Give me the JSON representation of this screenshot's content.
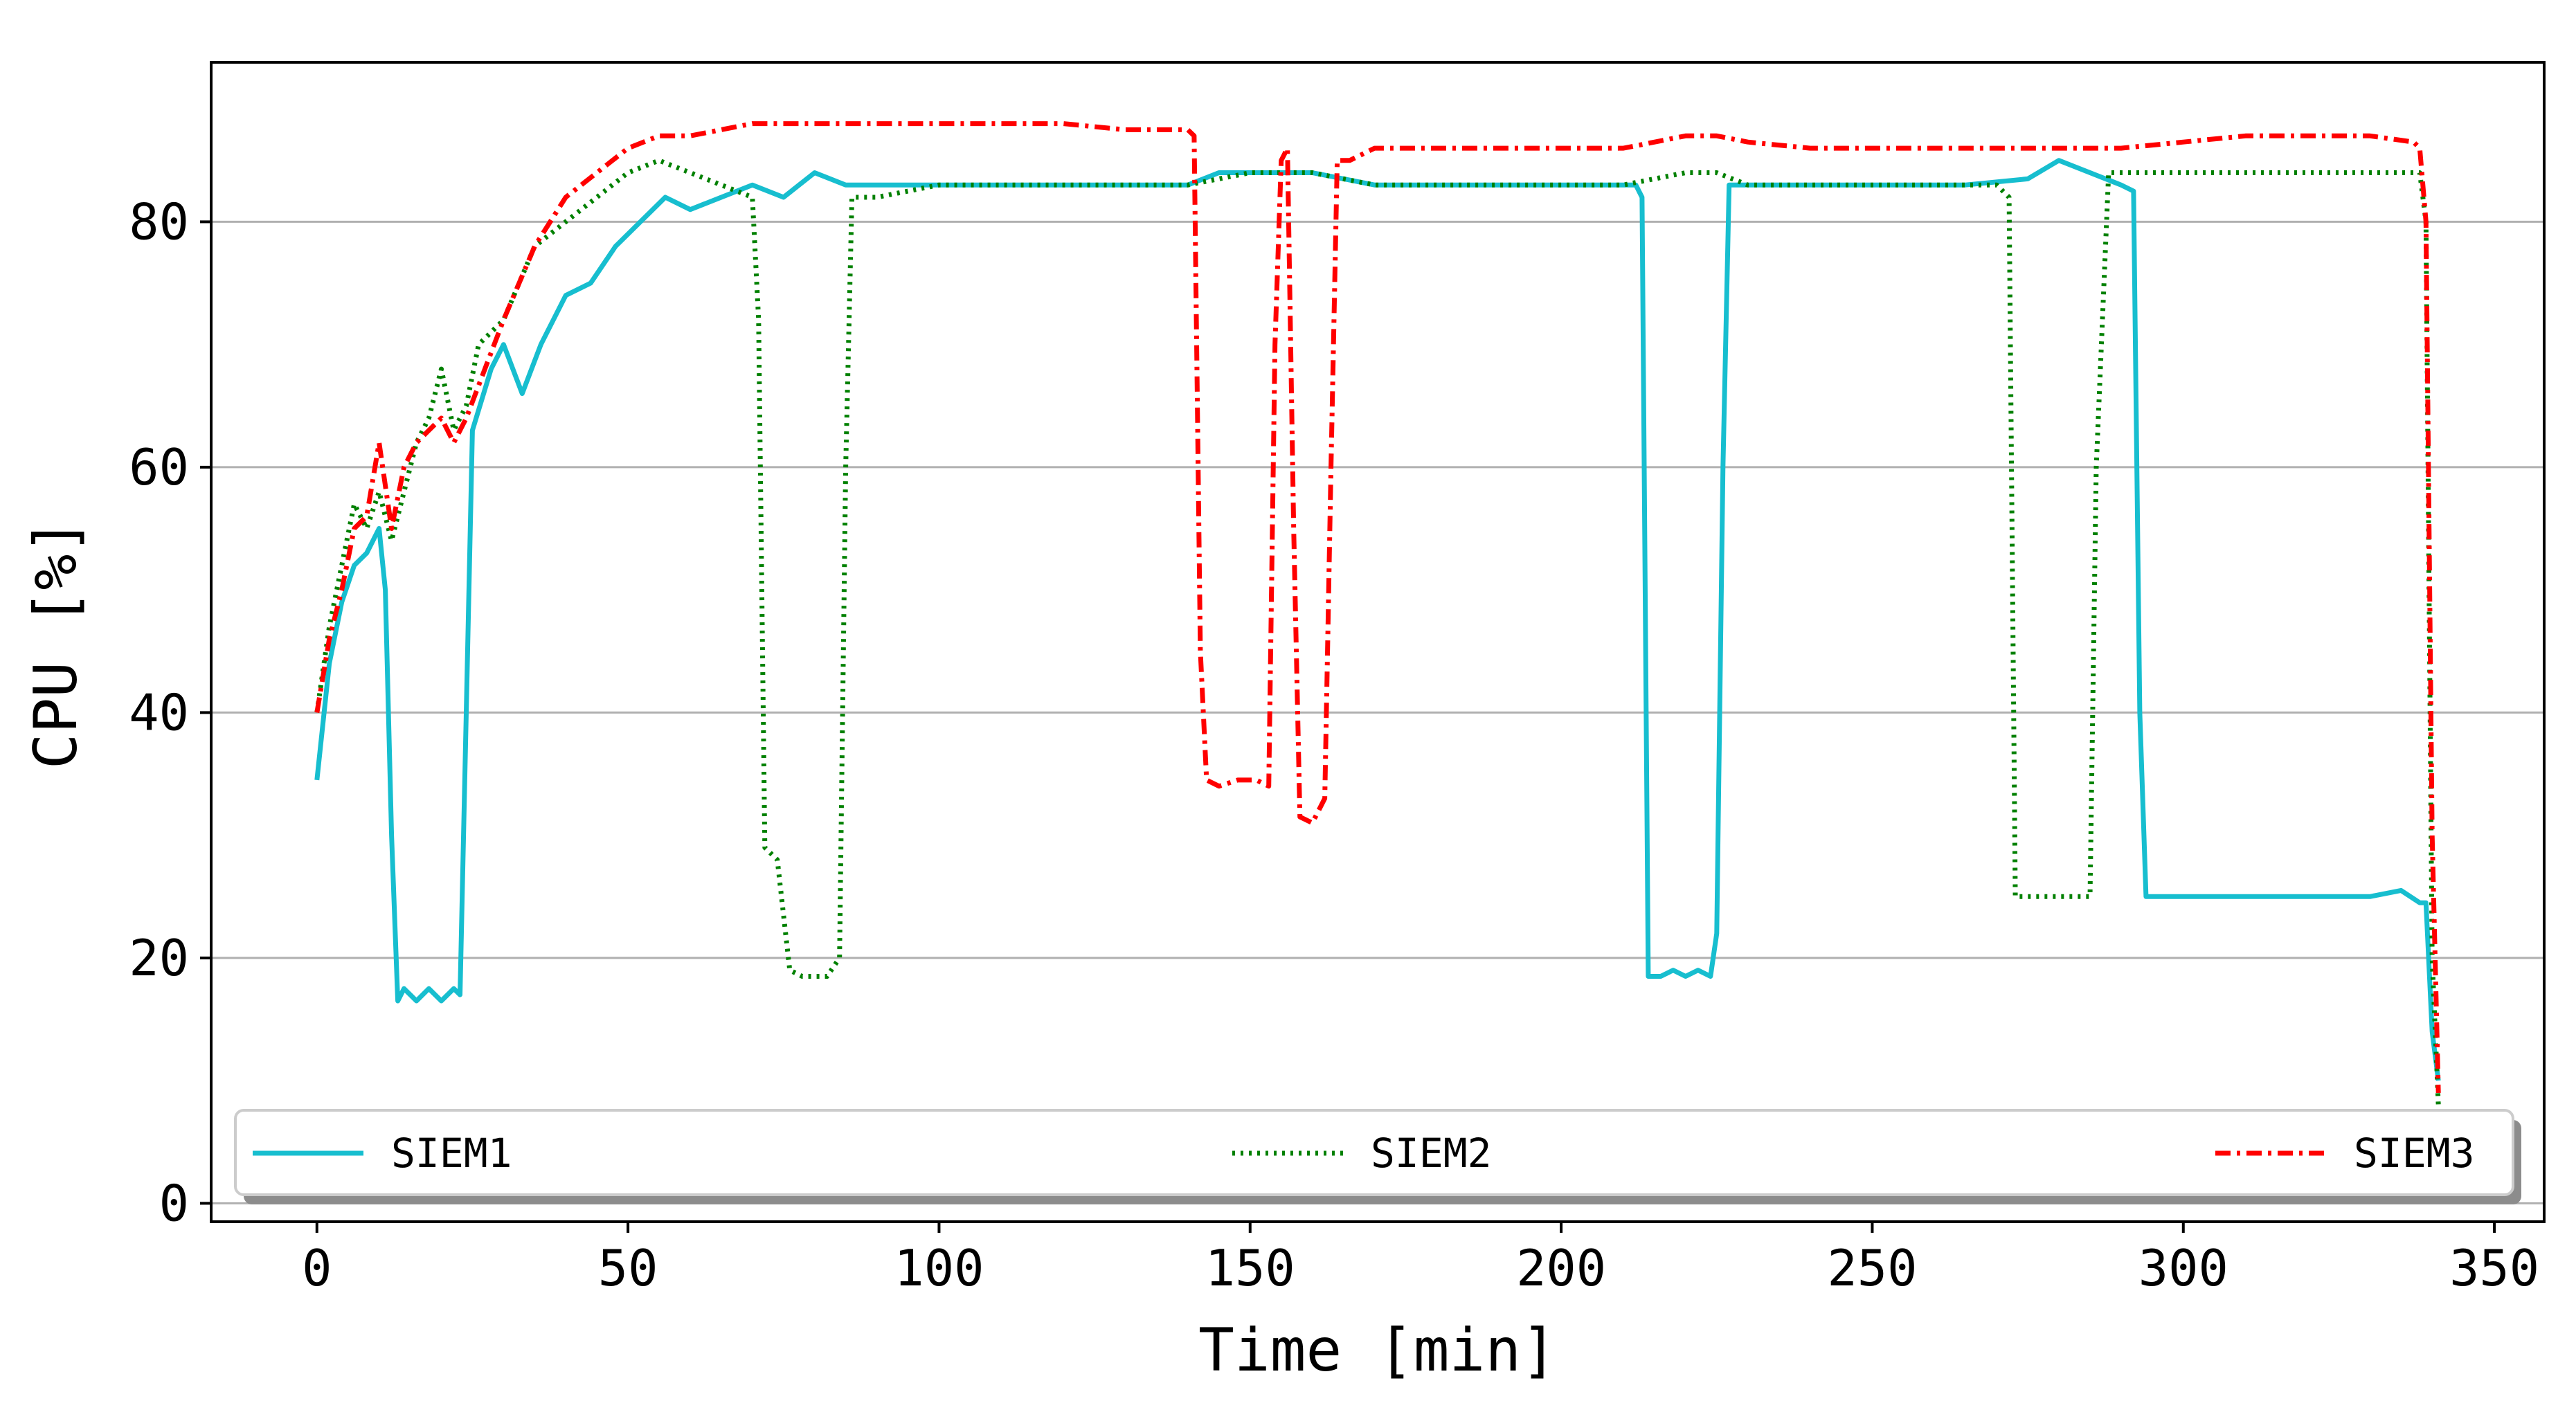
{
  "chart_data": {
    "type": "line",
    "title": "",
    "xlabel": "Time [min]",
    "ylabel": "CPU [%]",
    "xlim": [
      -17,
      358
    ],
    "ylim": [
      -1.5,
      93
    ],
    "xticks": [
      0,
      50,
      100,
      150,
      200,
      250,
      300,
      350
    ],
    "yticks": [
      0,
      20,
      40,
      60,
      80
    ],
    "grid": "horizontal",
    "legend_position": "bottom",
    "series": [
      {
        "name": "SIEM1",
        "color": "#17becf",
        "style": "solid",
        "x": [
          0,
          2,
          4,
          6,
          8,
          10,
          11,
          12,
          13,
          14,
          16,
          18,
          20,
          22,
          23,
          24,
          25,
          28,
          30,
          33,
          36,
          40,
          44,
          48,
          52,
          56,
          60,
          65,
          70,
          75,
          80,
          85,
          90,
          95,
          100,
          110,
          120,
          130,
          140,
          145,
          150,
          155,
          160,
          170,
          180,
          190,
          200,
          205,
          210,
          212,
          213,
          214,
          216,
          218,
          220,
          222,
          224,
          225,
          226,
          227,
          228,
          235,
          245,
          255,
          265,
          275,
          280,
          285,
          290,
          292,
          293,
          294,
          296,
          300,
          310,
          320,
          330,
          335,
          338,
          339,
          340,
          341
        ],
        "y": [
          34.5,
          44,
          49,
          52,
          53,
          55,
          50,
          30,
          16.5,
          17.5,
          16.5,
          17.5,
          16.5,
          17.5,
          17,
          40,
          63,
          68,
          70,
          66,
          70,
          74,
          75,
          78,
          80,
          82,
          81,
          82,
          83,
          82,
          84,
          83,
          83,
          83,
          83,
          83,
          83,
          83,
          83,
          84,
          84,
          84,
          84,
          83,
          83,
          83,
          83,
          83,
          83,
          83,
          82,
          18.5,
          18.5,
          19,
          18.5,
          19,
          18.5,
          22,
          60,
          83,
          83,
          83,
          83,
          83,
          83,
          83.5,
          85,
          84,
          83,
          82.5,
          40,
          25,
          25,
          25,
          25,
          25,
          25,
          25.5,
          24.5,
          24.5,
          14,
          10
        ]
      },
      {
        "name": "SIEM2",
        "color": "#008000",
        "style": "dotted",
        "x": [
          0,
          2,
          4,
          6,
          8,
          10,
          12,
          14,
          16,
          18,
          20,
          22,
          24,
          26,
          30,
          35,
          40,
          45,
          50,
          55,
          60,
          65,
          70,
          71,
          72,
          74,
          76,
          78,
          82,
          84,
          85,
          86,
          90,
          100,
          110,
          120,
          130,
          140,
          150,
          160,
          170,
          180,
          190,
          200,
          210,
          220,
          225,
          230,
          240,
          250,
          260,
          270,
          272,
          273,
          275,
          280,
          285,
          286,
          288,
          295,
          305,
          315,
          325,
          335,
          338,
          339,
          340,
          341
        ],
        "y": [
          40,
          47,
          52,
          57,
          55,
          58,
          54,
          58,
          62,
          64,
          68,
          63,
          65,
          70,
          72,
          78,
          80,
          82,
          84,
          85,
          84,
          83,
          82,
          72,
          29,
          28,
          19,
          18.5,
          18.5,
          20,
          60,
          82,
          82,
          83,
          83,
          83,
          83,
          83,
          84,
          84,
          83,
          83,
          83,
          83,
          83,
          84,
          84,
          83,
          83,
          83,
          83,
          83,
          82,
          25,
          25,
          25,
          25,
          60,
          84,
          84,
          84,
          84,
          84,
          84,
          84,
          80,
          20,
          8
        ]
      },
      {
        "name": "SIEM3",
        "color": "#ff0000",
        "style": "dashdot",
        "x": [
          0,
          2,
          4,
          6,
          8,
          10,
          12,
          14,
          16,
          18,
          20,
          22,
          24,
          27,
          30,
          35,
          40,
          45,
          50,
          55,
          60,
          70,
          80,
          90,
          100,
          110,
          120,
          130,
          140,
          141,
          142,
          143,
          145,
          148,
          151,
          153,
          154,
          155,
          156,
          157,
          158,
          160,
          162,
          163,
          164,
          166,
          170,
          180,
          190,
          200,
          210,
          220,
          225,
          230,
          240,
          250,
          260,
          270,
          280,
          290,
          300,
          310,
          320,
          330,
          337,
          338,
          339,
          340,
          341
        ],
        "y": [
          40,
          46,
          50,
          55,
          56,
          62,
          55,
          60,
          62,
          63,
          64,
          62,
          64,
          68,
          72,
          78,
          82,
          84,
          86,
          87,
          87,
          88,
          88,
          88,
          88,
          88,
          88,
          87.5,
          87.5,
          87,
          45,
          34.5,
          34,
          34.5,
          34.5,
          34,
          70,
          85,
          86,
          55,
          31.5,
          31,
          33,
          60,
          85,
          85,
          86,
          86,
          86,
          86,
          86,
          87,
          87,
          86.5,
          86,
          86,
          86,
          86,
          86,
          86,
          86.5,
          87,
          87,
          87,
          86.5,
          86,
          80,
          30,
          9
        ]
      }
    ]
  }
}
